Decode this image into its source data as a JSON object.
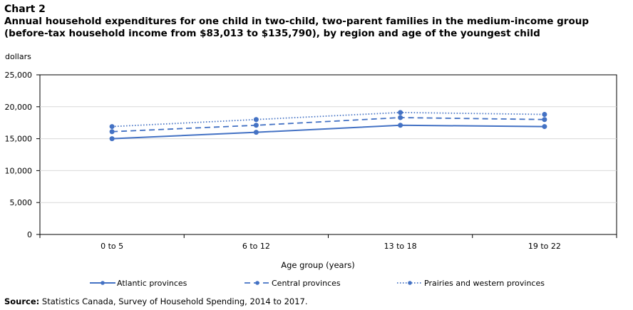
{
  "header": {
    "chart_number": "Chart 2",
    "title": "Annual household expenditures for one child in two-child, two-parent families in the medium-income group (before-tax household income from $83,013 to $135,790), by region and age of the youngest child"
  },
  "source": {
    "label": "Source:",
    "text": " Statistics Canada, Survey of Household Spending, 2014 to 2017."
  },
  "chart_data": {
    "type": "line",
    "title": "Annual household expenditures for one child in two-child, two-parent families in the medium-income group (before-tax household income from $83,013 to $135,790), by region and age of the youngest child",
    "ylabel": "dollars",
    "xlabel": "Age group (years)",
    "ylim": [
      0,
      25000
    ],
    "yticks": [
      0,
      5000,
      10000,
      15000,
      20000,
      25000
    ],
    "ytick_labels": [
      "0",
      "5,000",
      "10,000",
      "15,000",
      "20,000",
      "25,000"
    ],
    "grid": true,
    "legend_position": "bottom",
    "categories": [
      "0 to 5",
      "6 to 12",
      "13 to 18",
      "19 to 22"
    ],
    "series": [
      {
        "name": "Atlantic provinces",
        "values": [
          15000,
          16000,
          17100,
          16900
        ],
        "color": "#4472c4",
        "dash": "solid"
      },
      {
        "name": "Central provinces",
        "values": [
          16100,
          17100,
          18300,
          18000
        ],
        "color": "#4472c4",
        "dash": "dashed"
      },
      {
        "name": "Prairies and western provinces",
        "values": [
          16900,
          18000,
          19100,
          18800
        ],
        "color": "#4472c4",
        "dash": "dotted"
      }
    ]
  }
}
